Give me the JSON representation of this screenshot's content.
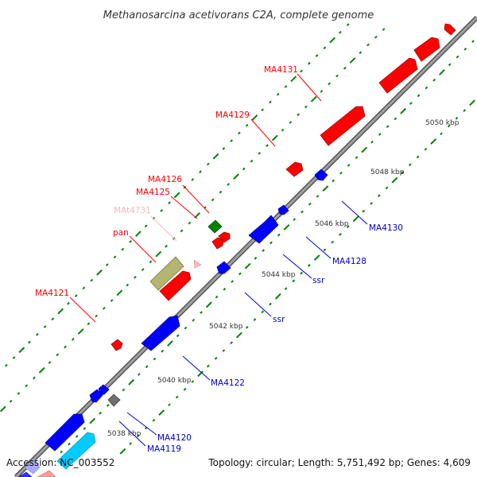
{
  "title": "Methanosarcina acetivorans C2A, complete genome",
  "footer": {
    "accession": "Accession: NC_003552",
    "summary": "Topology: circular; Length: 5,751,492 bp; Genes: 4,609"
  },
  "colors": {
    "backbone": "#808080",
    "forward_gene": "#ff0000",
    "reverse_gene": "#0000ff",
    "rna_gene": "#008000",
    "pseudo_gene": "#ffb6c1",
    "other_gene": "#808080",
    "repeat_region": "#b5b573",
    "cyan_gene": "#00ccff",
    "tick": "#008000"
  },
  "scale_labels": [
    "5038 kbp",
    "5040 kbp",
    "5042 kbp",
    "5044 kbp",
    "5046 kbp",
    "5048 kbp",
    "5050 kbp"
  ],
  "gene_labels": [
    {
      "text": "MA4131",
      "color": "#ff0000"
    },
    {
      "text": "MA4129",
      "color": "#ff0000"
    },
    {
      "text": "MA4126",
      "color": "#ff0000"
    },
    {
      "text": "MA4125",
      "color": "#ff0000"
    },
    {
      "text": "MAt4731",
      "color": "#ffb6c1"
    },
    {
      "text": "pan",
      "color": "#ff0000"
    },
    {
      "text": "MA4121",
      "color": "#ff0000"
    },
    {
      "text": "MA4130",
      "color": "#0000cc"
    },
    {
      "text": "MA4128",
      "color": "#0000cc"
    },
    {
      "text": "ssr",
      "color": "#0000cc"
    },
    {
      "text": "ssr",
      "color": "#0000cc"
    },
    {
      "text": "MA4122",
      "color": "#0000cc"
    },
    {
      "text": "MA4120",
      "color": "#0000cc"
    },
    {
      "text": "MA4119",
      "color": "#0000cc"
    }
  ]
}
